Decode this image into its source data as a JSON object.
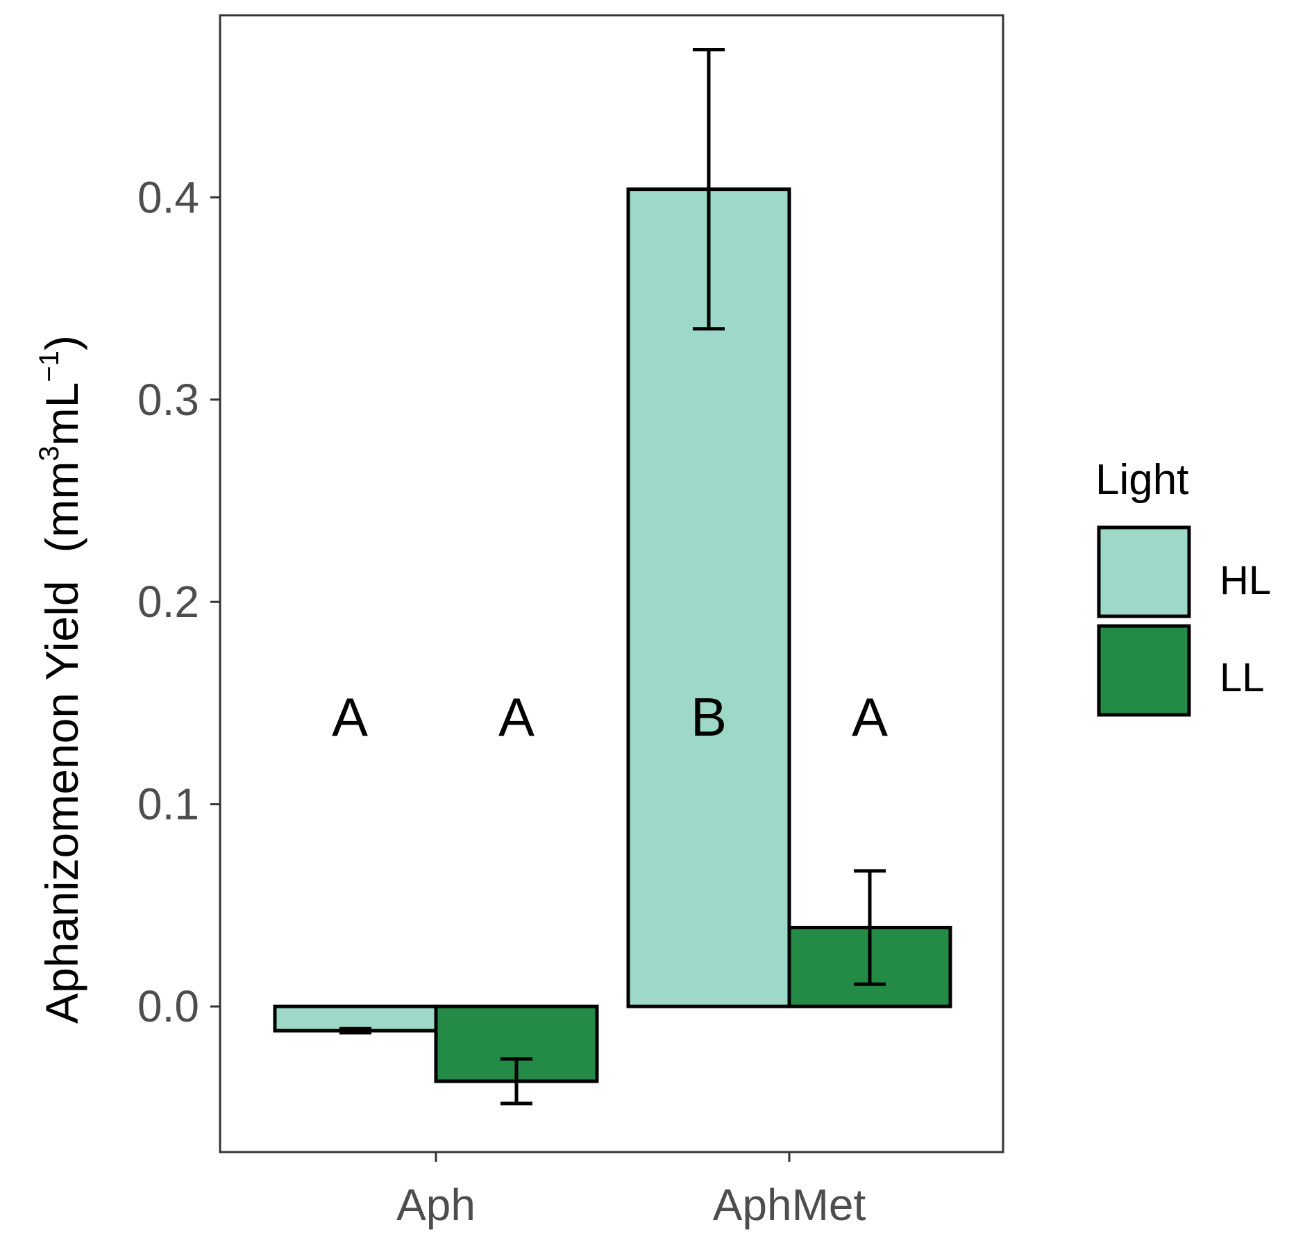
{
  "chart_data": {
    "type": "bar",
    "categories": [
      "Aph",
      "AphMet"
    ],
    "series": [
      {
        "name": "HL",
        "color": "#9ed8c8",
        "values": [
          -0.012,
          0.404
        ],
        "error_low": [
          -0.013,
          0.335
        ],
        "error_high": [
          -0.011,
          0.473
        ]
      },
      {
        "name": "LL",
        "color": "#238b45",
        "values": [
          -0.037,
          0.039
        ],
        "error_low": [
          -0.048,
          0.011
        ],
        "error_high": [
          -0.026,
          0.067
        ]
      }
    ],
    "significance_letters": [
      [
        "A",
        "B"
      ],
      [
        "A",
        "A"
      ]
    ],
    "ylabel": {
      "main": "Aphanizomenon Yield",
      "unit_open": "(mm",
      "unit_sup1": "3",
      "unit_mid": "mL",
      "unit_sup2": "−1",
      "unit_close": ")"
    },
    "xlabel": "",
    "y_ticks": [
      "0.0",
      "0.1",
      "0.2",
      "0.3",
      "0.4"
    ],
    "ylim": [
      -0.072,
      0.49
    ],
    "legend": {
      "title": "Light",
      "position": "right"
    },
    "grid": false
  }
}
